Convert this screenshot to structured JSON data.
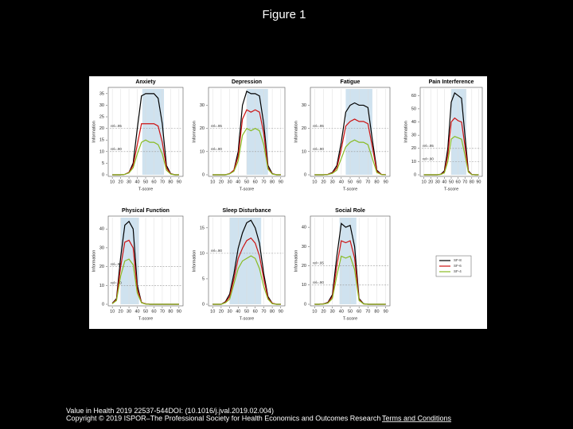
{
  "title": "Figure 1",
  "citation": {
    "journal": "Value in Health 2019 22537-544",
    "doi": "DOI: (10.1016/j.jval.2019.02.004)",
    "copyright": "Copyright © 2019 ISPOR–The Professional Society for Health Economics and Outcomes Research",
    "link": "Terms and Conditions"
  },
  "chart_data": [
    {
      "type": "line",
      "title": "Anxiety",
      "x_label": "T-score",
      "y_label": "Information",
      "x": [
        10,
        15,
        20,
        25,
        30,
        35,
        40,
        45,
        50,
        55,
        60,
        65,
        70,
        75,
        80,
        85,
        90
      ],
      "xlim": [
        7,
        93
      ],
      "xticks": [
        10,
        20,
        30,
        40,
        50,
        60,
        70,
        80,
        90
      ],
      "ylim": [
        0,
        37
      ],
      "yticks": [
        0,
        5,
        10,
        15,
        20,
        25,
        30,
        35
      ],
      "grid": true,
      "band": [
        46,
        72
      ],
      "annotations": [
        {
          "text": "rel=.95",
          "y": 20
        },
        {
          "text": "rel=.90",
          "y": 10
        }
      ],
      "series": [
        {
          "color": "#000000",
          "values": [
            0,
            0,
            0,
            0.2,
            1,
            5,
            20,
            34,
            35,
            35,
            35,
            33,
            22,
            4,
            0.5,
            0,
            0
          ]
        },
        {
          "color": "#cc1111",
          "values": [
            0,
            0,
            0,
            0.2,
            1,
            4,
            13,
            22,
            22,
            22,
            22,
            21,
            14,
            3,
            0.4,
            0,
            0
          ]
        },
        {
          "color": "#88bb22",
          "values": [
            0,
            0,
            0,
            0.2,
            0.8,
            3,
            9,
            14,
            15,
            14,
            14,
            13,
            9,
            2,
            0.3,
            0,
            0
          ]
        }
      ]
    },
    {
      "type": "line",
      "title": "Depression",
      "x_label": "T-score",
      "y_label": "Information",
      "x": [
        10,
        15,
        20,
        25,
        30,
        35,
        40,
        45,
        50,
        55,
        60,
        65,
        70,
        75,
        80,
        85,
        90
      ],
      "xlim": [
        7,
        93
      ],
      "xticks": [
        10,
        20,
        30,
        40,
        50,
        60,
        70,
        80,
        90
      ],
      "ylim": [
        0,
        37
      ],
      "yticks": [
        0,
        10,
        20,
        30
      ],
      "grid": true,
      "band": [
        50,
        75
      ],
      "annotations": [
        {
          "text": "rel=.95",
          "y": 20
        },
        {
          "text": "rel=.90",
          "y": 10
        }
      ],
      "series": [
        {
          "color": "#000000",
          "values": [
            0,
            0,
            0,
            0,
            0.5,
            2,
            10,
            30,
            36,
            35,
            35,
            34,
            22,
            4,
            0.5,
            0,
            0
          ]
        },
        {
          "color": "#cc1111",
          "values": [
            0,
            0,
            0,
            0,
            0.5,
            2,
            8,
            24,
            28,
            27,
            28,
            27,
            18,
            3,
            0.4,
            0,
            0
          ]
        },
        {
          "color": "#88bb22",
          "values": [
            0,
            0,
            0,
            0,
            0.4,
            1.5,
            6,
            17,
            20,
            19,
            20,
            19,
            13,
            2.5,
            0.3,
            0,
            0
          ]
        }
      ]
    },
    {
      "type": "line",
      "title": "Fatigue",
      "x_label": "T-score",
      "y_label": "Information",
      "x": [
        10,
        15,
        20,
        25,
        30,
        35,
        40,
        45,
        50,
        55,
        60,
        65,
        70,
        75,
        80,
        85,
        90
      ],
      "xlim": [
        7,
        93
      ],
      "xticks": [
        10,
        20,
        30,
        40,
        50,
        60,
        70,
        80,
        90
      ],
      "ylim": [
        0,
        37
      ],
      "yticks": [
        0,
        10,
        20,
        30
      ],
      "grid": true,
      "band": [
        45,
        75
      ],
      "annotations": [
        {
          "text": "rel=.95",
          "y": 20
        },
        {
          "text": "rel=.90",
          "y": 10
        }
      ],
      "series": [
        {
          "color": "#000000",
          "values": [
            0,
            0,
            0,
            0.2,
            1,
            4,
            14,
            27,
            30,
            31,
            30,
            30,
            29,
            15,
            2,
            0.2,
            0
          ]
        },
        {
          "color": "#cc1111",
          "values": [
            0,
            0,
            0,
            0.2,
            0.8,
            3,
            11,
            21,
            23,
            24,
            23,
            23,
            22,
            12,
            1.5,
            0.2,
            0
          ]
        },
        {
          "color": "#88bb22",
          "values": [
            0,
            0,
            0,
            0.1,
            0.6,
            2,
            7,
            12,
            14,
            15,
            14,
            14,
            13,
            7,
            1,
            0.1,
            0
          ]
        }
      ]
    },
    {
      "type": "line",
      "title": "Pain Interference",
      "x_label": "T-score",
      "y_label": "Information",
      "x": [
        10,
        15,
        20,
        25,
        30,
        35,
        40,
        45,
        50,
        55,
        60,
        65,
        70,
        75,
        80,
        85,
        90
      ],
      "xlim": [
        7,
        93
      ],
      "xticks": [
        10,
        20,
        30,
        40,
        50,
        60,
        70,
        80,
        90
      ],
      "ylim": [
        0,
        65
      ],
      "yticks": [
        0,
        10,
        20,
        30,
        40,
        50,
        60
      ],
      "grid": true,
      "band": [
        50,
        72
      ],
      "annotations": [
        {
          "text": "rel=.95",
          "y": 20
        },
        {
          "text": "rel=.90",
          "y": 10
        }
      ],
      "series": [
        {
          "color": "#000000",
          "values": [
            0,
            0,
            0,
            0,
            0,
            0.5,
            3,
            20,
            55,
            62,
            60,
            58,
            30,
            3,
            0.2,
            0,
            0
          ]
        },
        {
          "color": "#cc1111",
          "values": [
            0,
            0,
            0,
            0,
            0,
            0.4,
            2,
            15,
            40,
            43,
            41,
            40,
            22,
            2.5,
            0.2,
            0,
            0
          ]
        },
        {
          "color": "#88bb22",
          "values": [
            0,
            0,
            0,
            0,
            0,
            0.3,
            1.5,
            10,
            27,
            29,
            28,
            27,
            15,
            2,
            0.1,
            0,
            0
          ]
        }
      ]
    },
    {
      "type": "line",
      "title": "Physical Function",
      "x_label": "T-score",
      "y_label": "Information",
      "x": [
        10,
        15,
        20,
        25,
        30,
        35,
        40,
        45,
        50,
        55,
        60,
        65,
        70,
        75,
        80,
        85,
        90
      ],
      "xlim": [
        7,
        93
      ],
      "xticks": [
        10,
        20,
        30,
        40,
        50,
        60,
        70,
        80,
        90
      ],
      "ylim": [
        0,
        46
      ],
      "yticks": [
        0,
        10,
        20,
        30,
        40
      ],
      "grid": true,
      "band": [
        20,
        42
      ],
      "annotations": [
        {
          "text": "rel=.95",
          "y": 20
        },
        {
          "text": "rel=.90",
          "y": 10
        }
      ],
      "series": [
        {
          "color": "#000000",
          "values": [
            0.5,
            3,
            25,
            42,
            44,
            40,
            10,
            1,
            0.2,
            0,
            0,
            0,
            0,
            0,
            0,
            0,
            0
          ]
        },
        {
          "color": "#cc1111",
          "values": [
            0.4,
            2.5,
            20,
            33,
            34,
            30,
            8,
            1,
            0.2,
            0,
            0,
            0,
            0,
            0,
            0,
            0,
            0
          ]
        },
        {
          "color": "#88bb22",
          "values": [
            0.3,
            2,
            15,
            23,
            24,
            21,
            6,
            0.8,
            0.1,
            0,
            0,
            0,
            0,
            0,
            0,
            0,
            0
          ]
        }
      ]
    },
    {
      "type": "line",
      "title": "Sleep Disturbance",
      "x_label": "T-score",
      "y_label": "Information",
      "x": [
        10,
        15,
        20,
        25,
        30,
        35,
        40,
        45,
        50,
        55,
        60,
        65,
        70,
        75,
        80,
        85,
        90
      ],
      "xlim": [
        7,
        93
      ],
      "xticks": [
        10,
        20,
        30,
        40,
        50,
        60,
        70,
        80,
        90
      ],
      "ylim": [
        0,
        17
      ],
      "yticks": [
        0,
        5,
        10,
        15
      ],
      "grid": true,
      "band": [
        30,
        67
      ],
      "annotations": [
        {
          "text": "rel=.90",
          "y": 10
        }
      ],
      "series": [
        {
          "color": "#000000",
          "values": [
            0,
            0,
            0,
            0.5,
            2,
            6,
            11,
            14,
            16,
            16.5,
            15,
            12,
            6,
            1.5,
            0.2,
            0,
            0
          ]
        },
        {
          "color": "#cc1111",
          "values": [
            0,
            0,
            0,
            0.4,
            1.5,
            5,
            9,
            11,
            12.5,
            13,
            12,
            9.5,
            5,
            1.2,
            0.2,
            0,
            0
          ]
        },
        {
          "color": "#88bb22",
          "values": [
            0,
            0,
            0,
            0.3,
            1,
            4,
            7,
            8.5,
            9,
            9.5,
            9,
            7,
            3.5,
            1,
            0.1,
            0,
            0
          ]
        }
      ]
    },
    {
      "type": "line",
      "title": "Social Role",
      "x_label": "T-score",
      "y_label": "Information",
      "x": [
        10,
        15,
        20,
        25,
        30,
        35,
        40,
        45,
        50,
        55,
        60,
        65,
        70,
        75,
        80,
        85,
        90
      ],
      "xlim": [
        7,
        93
      ],
      "xticks": [
        10,
        20,
        30,
        40,
        50,
        60,
        70,
        80,
        90
      ],
      "ylim": [
        0,
        45
      ],
      "yticks": [
        0,
        10,
        20,
        30,
        40
      ],
      "grid": true,
      "band": [
        38,
        57
      ],
      "legend": "outside-right",
      "annotations": [
        {
          "text": "rel=.95",
          "y": 20
        },
        {
          "text": "rel=.90",
          "y": 10
        }
      ],
      "series": [
        {
          "name": "SF-8",
          "color": "#000000",
          "values": [
            0,
            0,
            0.2,
            1,
            5,
            25,
            42,
            40,
            41,
            30,
            3,
            0.3,
            0,
            0,
            0,
            0,
            0
          ]
        },
        {
          "name": "SF-6",
          "color": "#cc1111",
          "values": [
            0,
            0,
            0.2,
            0.8,
            4,
            20,
            33,
            32,
            33,
            24,
            2.5,
            0.2,
            0,
            0,
            0,
            0,
            0
          ]
        },
        {
          "name": "SF-4",
          "color": "#88bb22",
          "values": [
            0,
            0,
            0.1,
            0.6,
            3,
            15,
            25,
            24,
            25,
            18,
            2,
            0.2,
            0,
            0,
            0,
            0,
            0
          ]
        }
      ]
    }
  ]
}
